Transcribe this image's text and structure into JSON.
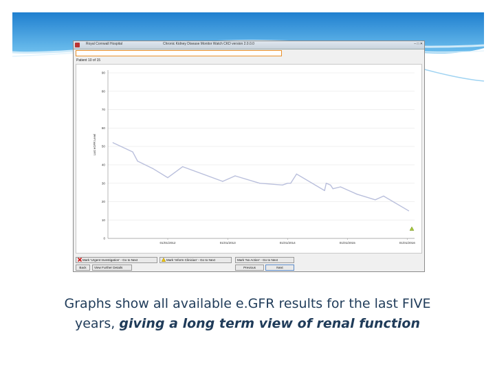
{
  "window": {
    "hospital": "Royal Cornwall Hospital",
    "title": "Chronic Kidney Disease Monitor Watch CKD version 2.0.0.0",
    "controls": "–  □  ✕"
  },
  "patient_label": "Patient 10 of 15",
  "chart_data": {
    "type": "line",
    "ylabel": "Last eGFR Level",
    "ylim": [
      0,
      90
    ],
    "yticks": [
      0,
      10,
      20,
      30,
      40,
      50,
      60,
      70,
      80,
      90
    ],
    "xticks": [
      "01/01/2012",
      "01/01/2013",
      "01/01/2014",
      "01/01/2015",
      "01/01/2016"
    ],
    "xrange": [
      "2011-01-01",
      "2016-02-15"
    ],
    "series": [
      {
        "color": "#b9bfdc",
        "points": [
          [
            "2011-02-01",
            52
          ],
          [
            "2011-06-01",
            47
          ],
          [
            "2011-07-01",
            42
          ],
          [
            "2011-10-01",
            38
          ],
          [
            "2012-01-01",
            33
          ],
          [
            "2012-04-01",
            39
          ],
          [
            "2012-12-01",
            31
          ],
          [
            "2013-02-15",
            34
          ],
          [
            "2013-07-15",
            30
          ],
          [
            "2013-12-01",
            29
          ],
          [
            "2014-01-01",
            30
          ],
          [
            "2014-01-20",
            30
          ],
          [
            "2014-02-25",
            35
          ],
          [
            "2014-08-15",
            26
          ],
          [
            "2014-08-25",
            30
          ],
          [
            "2014-09-20",
            29
          ],
          [
            "2014-10-05",
            27
          ],
          [
            "2014-11-20",
            28
          ],
          [
            "2015-03-01",
            24
          ],
          [
            "2015-06-20",
            21
          ],
          [
            "2015-08-10",
            23
          ],
          [
            "2016-01-10",
            15
          ]
        ]
      }
    ]
  },
  "buttons": {
    "mark_urgent": "Mark 'Urgent Investigation' - Go to Next",
    "mark_inform": "Mark 'Inform Clinician' - Go to Next",
    "mark_no_action": "Mark 'No Action' - Go to Next",
    "back": "Back",
    "view_details": "View Further Details",
    "previous": "Previous",
    "next": "Next"
  },
  "caption": {
    "line1": "Graphs show all available e.GFR results for the last FIVE",
    "line2_plain": "years, ",
    "line2_emph": "giving a long term view of renal function"
  },
  "colors": {
    "banner_blue": "#2f8fd8",
    "caption_text": "#1f3b59",
    "series_line": "#b9bfdc",
    "highlight_border": "#e8902a"
  }
}
